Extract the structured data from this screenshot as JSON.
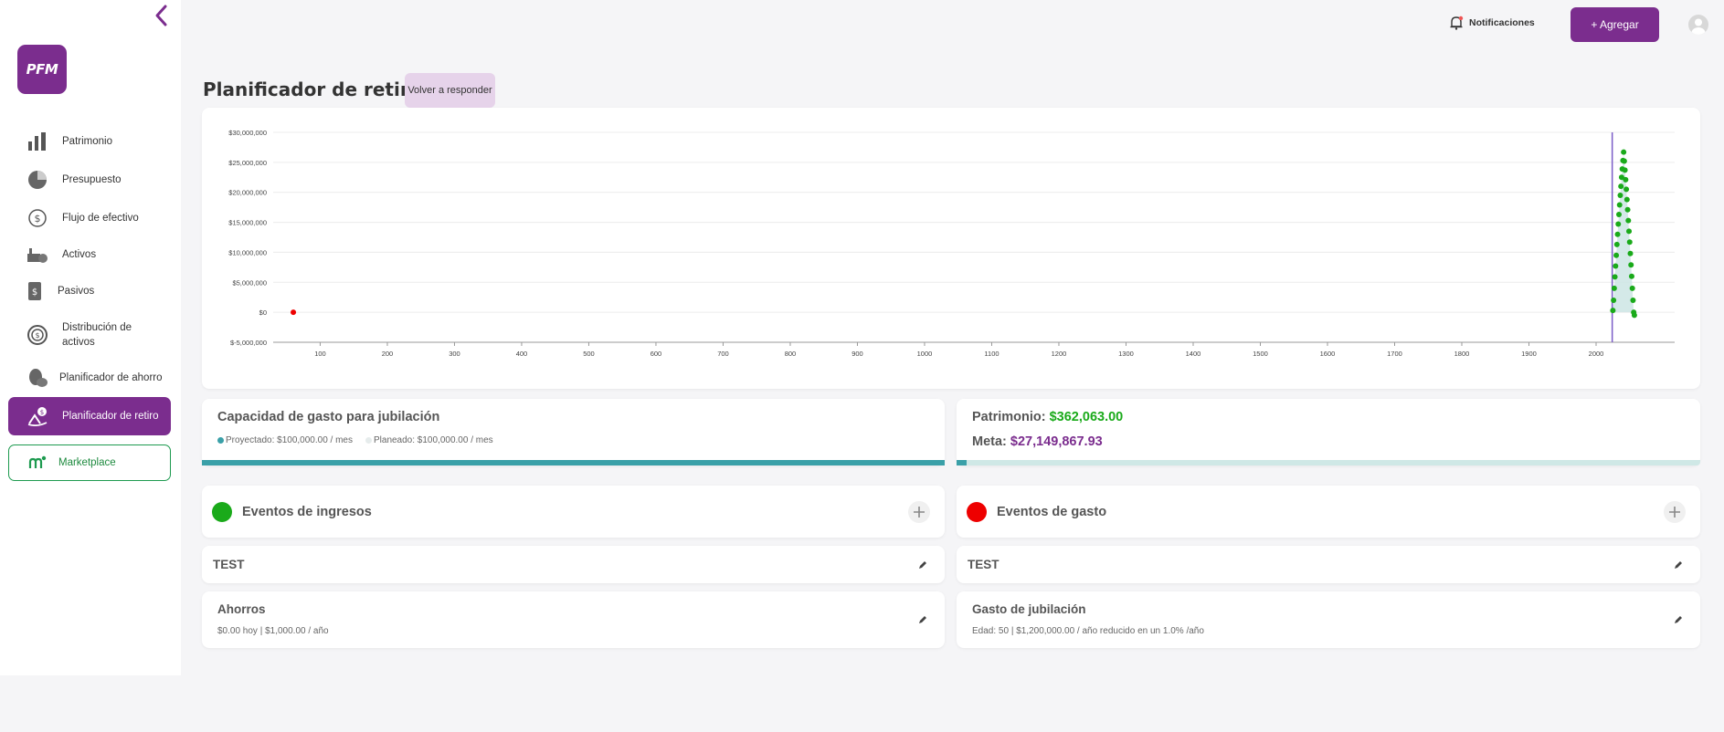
{
  "sidebar": {
    "logo": "PFM",
    "items": [
      {
        "label": "Patrimonio",
        "icon": "bar-chart-icon"
      },
      {
        "label": "Presupuesto",
        "icon": "pie-chart-icon"
      },
      {
        "label": "Flujo de efectivo",
        "icon": "cash-flow-icon"
      },
      {
        "label": "Activos",
        "icon": "assets-icon"
      },
      {
        "label": "Pasivos",
        "icon": "liabilities-icon"
      },
      {
        "label": "Distribución de activos",
        "icon": "asset-distribution-icon"
      },
      {
        "label": "Planificador de ahorro",
        "icon": "piggy-bank-icon"
      },
      {
        "label": "Planificador de retiro",
        "icon": "retirement-icon",
        "active": true
      },
      {
        "label": "Marketplace",
        "icon": "marketplace-icon"
      }
    ]
  },
  "header": {
    "notifications_label": "Notificaciones",
    "add_label": "+ Agregar"
  },
  "page": {
    "title": "Planificador de retiro",
    "retake_label": "Volver a responder"
  },
  "capacity": {
    "title": "Capacidad de gasto para jubilación",
    "projected": "Proyectado: $100,000.00 / mes",
    "planned": "Planeado: $100,000.00 / mes",
    "progress": 1.0
  },
  "net_worth": {
    "patrimonio_label": "Patrimonio:",
    "patrimonio_value": "$362,063.00",
    "meta_label": "Meta:",
    "meta_value": "$27,149,867.93",
    "progress": 0.0133
  },
  "income_events": {
    "title": "Eventos de ingresos",
    "rows": [
      {
        "title": "TEST"
      },
      {
        "title": "Ahorros",
        "subtitle": "$0.00 hoy | $1,000.00 / año"
      }
    ]
  },
  "expense_events": {
    "title": "Eventos de gasto",
    "rows": [
      {
        "title": "TEST"
      },
      {
        "title": "Gasto de jubilación",
        "subtitle": "Edad: 50 | $1,200,000.00 / año reducido en un 1.0% /año"
      }
    ]
  },
  "colors": {
    "brand": "#7b2d8e",
    "income": "#1aaa1a",
    "expense": "#ee0000",
    "teal": "#3aa0a8",
    "green_text": "#1aaa1a",
    "purple_text": "#7b2d8e"
  },
  "chart_data": {
    "type": "scatter",
    "title": "",
    "xlabel": "",
    "ylabel": "",
    "x_ticks": [
      100,
      200,
      300,
      400,
      500,
      600,
      700,
      800,
      900,
      1000,
      1100,
      1200,
      1300,
      1400,
      1500,
      1600,
      1700,
      1800,
      1900,
      2000
    ],
    "y_ticks": [
      -5000000,
      0,
      5000000,
      10000000,
      15000000,
      20000000,
      25000000,
      30000000
    ],
    "y_tick_labels": [
      "$-5,000,000",
      "$0",
      "$5,000,000",
      "$10,000,000",
      "$15,000,000",
      "$20,000,000",
      "$25,000,000",
      "$30,000,000"
    ],
    "xlim": [
      30,
      2117
    ],
    "ylim": [
      -5000000,
      30000000
    ],
    "marker_year": 2024,
    "series": [
      {
        "color": "#ee0000",
        "points": [
          [
            60,
            0
          ]
        ]
      },
      {
        "color": "#1aaa1a",
        "points": [
          [
            2025,
            300000
          ],
          [
            2026,
            2000000
          ],
          [
            2027,
            4000000
          ],
          [
            2028,
            5900000
          ],
          [
            2029,
            7700000
          ],
          [
            2030,
            9500000
          ],
          [
            2031,
            11300000
          ],
          [
            2032,
            13000000
          ],
          [
            2033,
            14700000
          ],
          [
            2034,
            16300000
          ],
          [
            2035,
            17900000
          ],
          [
            2036,
            19500000
          ],
          [
            2037,
            21000000
          ],
          [
            2038,
            22500000
          ],
          [
            2039,
            23900000
          ],
          [
            2040,
            25300000
          ],
          [
            2041,
            26700000
          ],
          [
            2042,
            25200000
          ],
          [
            2043,
            23700000
          ],
          [
            2044,
            22100000
          ],
          [
            2045,
            20500000
          ],
          [
            2046,
            18800000
          ],
          [
            2047,
            17100000
          ],
          [
            2048,
            15300000
          ],
          [
            2049,
            13500000
          ],
          [
            2050,
            11700000
          ],
          [
            2051,
            9800000
          ],
          [
            2052,
            7900000
          ],
          [
            2053,
            6000000
          ],
          [
            2054,
            4000000
          ],
          [
            2055,
            2000000
          ],
          [
            2056,
            0
          ],
          [
            2057,
            -500000
          ]
        ]
      }
    ]
  }
}
